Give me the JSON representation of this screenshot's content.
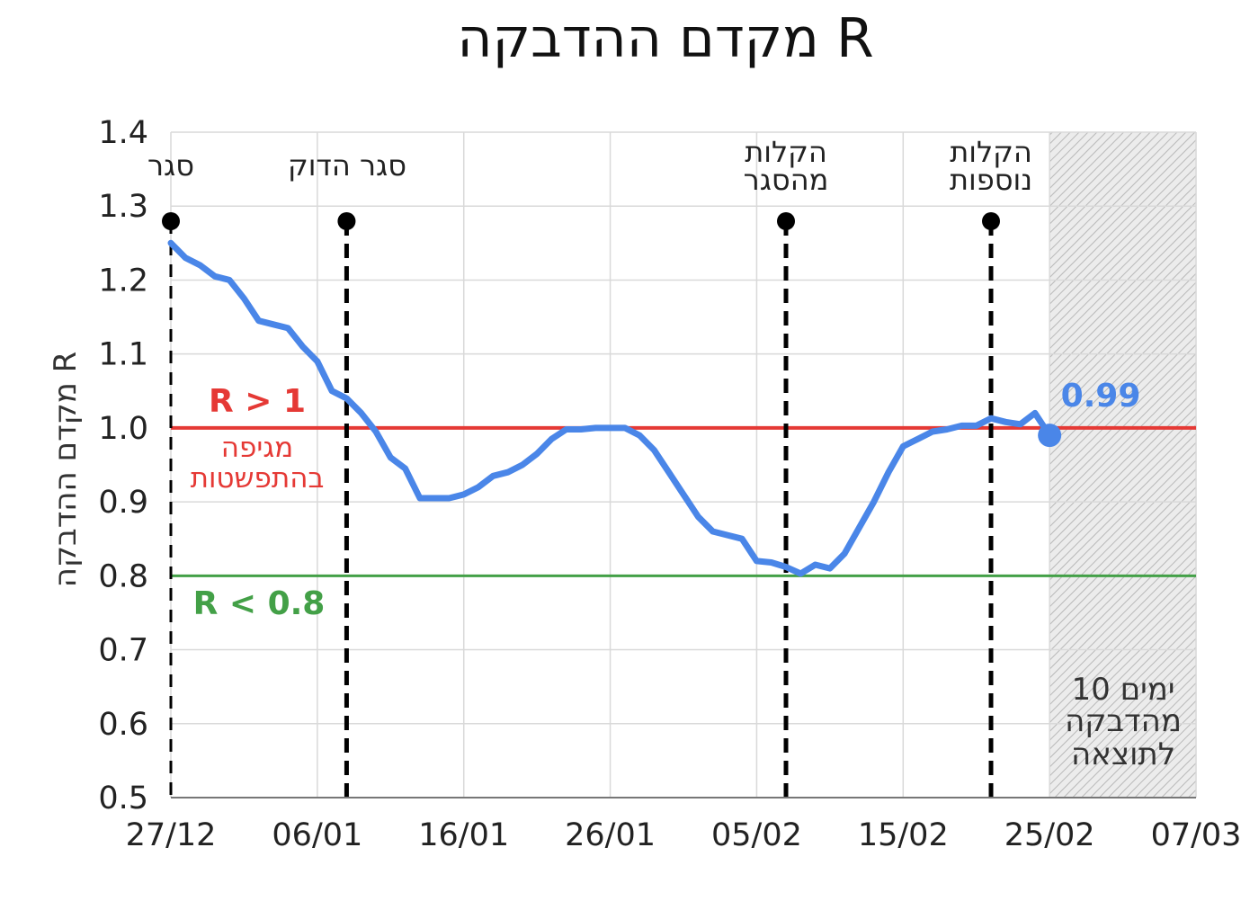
{
  "chart_data": {
    "type": "line",
    "title": "מקדם ההדבקה R",
    "ylabel": "מקדם ההדבקה R",
    "xlabel": "",
    "ylim": [
      0.5,
      1.4
    ],
    "yticks": [
      "0.5",
      "0.6",
      "0.7",
      "0.8",
      "0.9",
      "1.0",
      "1.1",
      "1.2",
      "1.3",
      "1.4"
    ],
    "xticks": [
      "27/12",
      "06/01",
      "16/01",
      "26/01",
      "05/02",
      "15/02",
      "25/02",
      "07/03"
    ],
    "x_range": [
      "2020-12-27",
      "2021-03-07"
    ],
    "grid": true,
    "series": [
      {
        "color": "#4a86e8",
        "points": [
          [
            "2020-12-27",
            1.25
          ],
          [
            "2020-12-28",
            1.23
          ],
          [
            "2020-12-29",
            1.22
          ],
          [
            "2020-12-30",
            1.205
          ],
          [
            "2020-12-31",
            1.2
          ],
          [
            "2021-01-01",
            1.175
          ],
          [
            "2021-01-02",
            1.145
          ],
          [
            "2021-01-03",
            1.14
          ],
          [
            "2021-01-04",
            1.135
          ],
          [
            "2021-01-05",
            1.11
          ],
          [
            "2021-01-06",
            1.09
          ],
          [
            "2021-01-07",
            1.05
          ],
          [
            "2021-01-08",
            1.04
          ],
          [
            "2021-01-09",
            1.02
          ],
          [
            "2021-01-10",
            0.995
          ],
          [
            "2021-01-11",
            0.96
          ],
          [
            "2021-01-12",
            0.945
          ],
          [
            "2021-01-13",
            0.905
          ],
          [
            "2021-01-14",
            0.905
          ],
          [
            "2021-01-15",
            0.905
          ],
          [
            "2021-01-16",
            0.91
          ],
          [
            "2021-01-17",
            0.92
          ],
          [
            "2021-01-18",
            0.935
          ],
          [
            "2021-01-19",
            0.94
          ],
          [
            "2021-01-20",
            0.95
          ],
          [
            "2021-01-21",
            0.965
          ],
          [
            "2021-01-22",
            0.985
          ],
          [
            "2021-01-23",
            0.998
          ],
          [
            "2021-01-24",
            0.998
          ],
          [
            "2021-01-25",
            1.0
          ],
          [
            "2021-01-26",
            1.0
          ],
          [
            "2021-01-27",
            1.0
          ],
          [
            "2021-01-28",
            0.99
          ],
          [
            "2021-01-29",
            0.97
          ],
          [
            "2021-01-30",
            0.94
          ],
          [
            "2021-01-31",
            0.91
          ],
          [
            "2021-02-01",
            0.88
          ],
          [
            "2021-02-02",
            0.86
          ],
          [
            "2021-02-03",
            0.855
          ],
          [
            "2021-02-04",
            0.85
          ],
          [
            "2021-02-05",
            0.82
          ],
          [
            "2021-02-06",
            0.818
          ],
          [
            "2021-02-07",
            0.812
          ],
          [
            "2021-02-08",
            0.803
          ],
          [
            "2021-02-09",
            0.815
          ],
          [
            "2021-02-10",
            0.81
          ],
          [
            "2021-02-11",
            0.83
          ],
          [
            "2021-02-12",
            0.865
          ],
          [
            "2021-02-13",
            0.9
          ],
          [
            "2021-02-14",
            0.94
          ],
          [
            "2021-02-15",
            0.975
          ],
          [
            "2021-02-16",
            0.985
          ],
          [
            "2021-02-17",
            0.995
          ],
          [
            "2021-02-18",
            0.998
          ],
          [
            "2021-02-19",
            1.003
          ],
          [
            "2021-02-20",
            1.003
          ],
          [
            "2021-02-21",
            1.013
          ],
          [
            "2021-02-22",
            1.008
          ],
          [
            "2021-02-23",
            1.005
          ],
          [
            "2021-02-24",
            1.02
          ],
          [
            "2021-02-25",
            0.99
          ]
        ]
      }
    ],
    "reference_lines": [
      {
        "y": 1.0,
        "color": "#e53935",
        "label": "R > 1",
        "sublabel_lines": [
          "מגיפה",
          "בהתפשטות"
        ]
      },
      {
        "y": 0.8,
        "color": "#43a047",
        "label": "R < 0.8"
      }
    ],
    "events": [
      {
        "date": "2020-12-27",
        "label_lines": [
          "סגר"
        ],
        "emphasis": "light"
      },
      {
        "date": "2021-01-08",
        "label_lines": [
          "סגר הדוק"
        ],
        "emphasis": "bold"
      },
      {
        "date": "2021-02-07",
        "label_lines": [
          "הקלות",
          "מהסגר"
        ],
        "emphasis": "bold"
      },
      {
        "date": "2021-02-21",
        "label_lines": [
          "הקלות",
          "נוספות"
        ],
        "emphasis": "bold"
      }
    ],
    "shaded_region": {
      "from": "2021-02-25",
      "to": "2021-03-07",
      "label_lines": [
        "10 ימים",
        "מהדבקה",
        "לתוצאה"
      ]
    },
    "end_label": "0.99",
    "colors": {
      "line": "#4a86e8",
      "grid": "#d9d9d9",
      "shade": "#e8e8e8"
    }
  }
}
